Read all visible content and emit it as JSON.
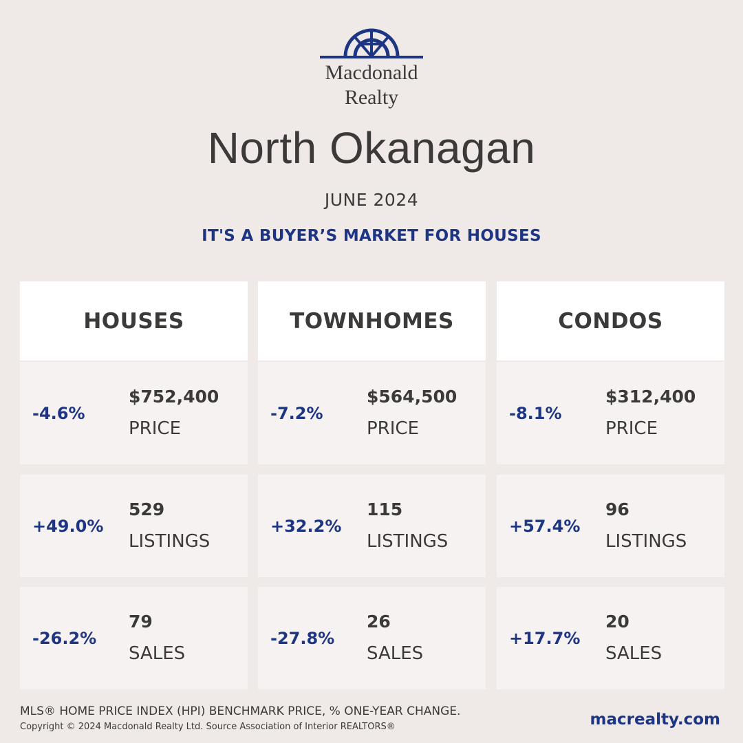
{
  "brand": {
    "name_line1": "Macdonald",
    "name_line2": "Realty",
    "accent_color": "#1d3583"
  },
  "header": {
    "region": "North Okanagan",
    "date": "JUNE 2024",
    "headline": "IT'S A BUYER’S MARKET FOR HOUSES"
  },
  "columns": [
    {
      "title": "HOUSES",
      "stats": [
        {
          "change": "-4.6%",
          "value": "$752,400",
          "label": "PRICE"
        },
        {
          "change": "+49.0%",
          "value": "529",
          "label": "LISTINGS"
        },
        {
          "change": "-26.2%",
          "value": "79",
          "label": "SALES"
        }
      ]
    },
    {
      "title": "TOWNHOMES",
      "stats": [
        {
          "change": "-7.2%",
          "value": "$564,500",
          "label": "PRICE"
        },
        {
          "change": "+32.2%",
          "value": "115",
          "label": "LISTINGS"
        },
        {
          "change": "-27.8%",
          "value": "26",
          "label": "SALES"
        }
      ]
    },
    {
      "title": "CONDOS",
      "stats": [
        {
          "change": "-8.1%",
          "value": "$312,400",
          "label": "PRICE"
        },
        {
          "change": "+57.4%",
          "value": "96",
          "label": "LISTINGS"
        },
        {
          "change": "+17.7%",
          "value": "20",
          "label": "SALES"
        }
      ]
    }
  ],
  "footer": {
    "note": "MLS® HOME PRICE INDEX (HPI) BENCHMARK PRICE, % ONE-YEAR CHANGE.",
    "copyright": "Copyright © 2024 Macdonald Realty Ltd. Source Association of Interior REALTORS®",
    "website": "macrealty.com"
  }
}
